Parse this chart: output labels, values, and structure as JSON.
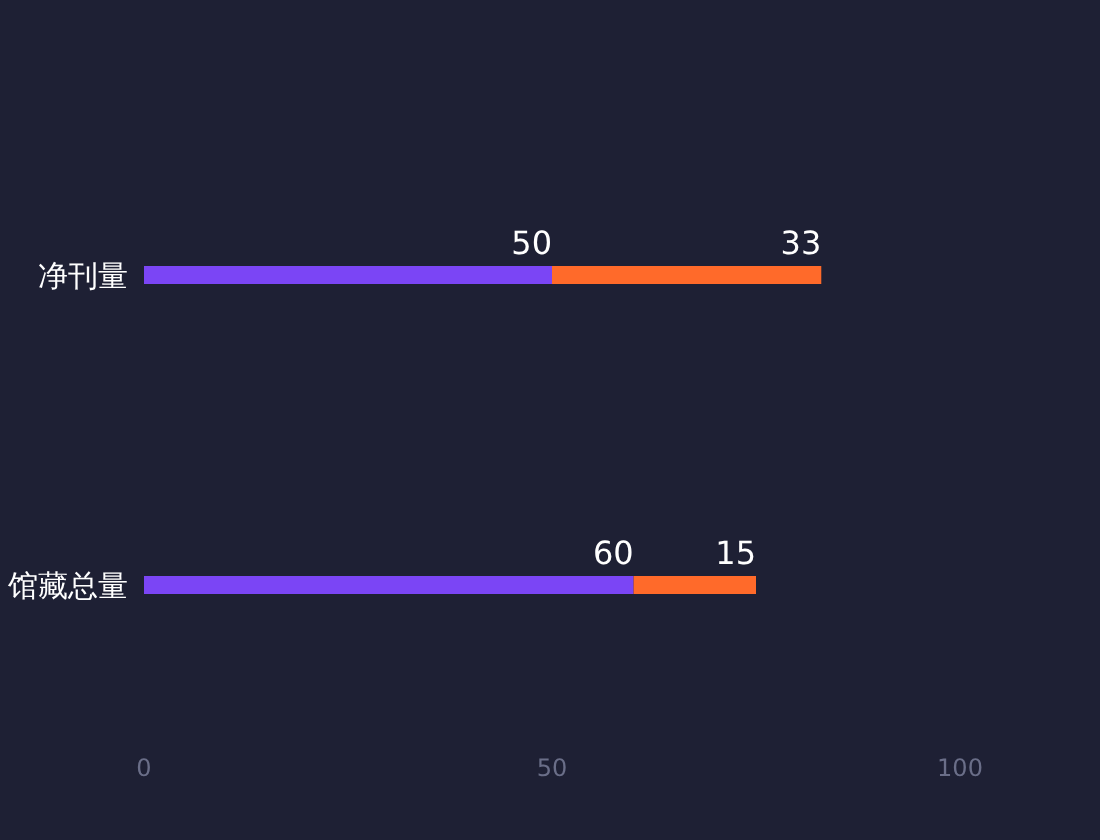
{
  "chart_data": {
    "type": "bar",
    "orientation": "horizontal",
    "stacked": true,
    "categories": [
      "净刊量",
      "馆藏总量"
    ],
    "series": [
      {
        "color": "#7b45f5",
        "values": [
          50,
          60
        ]
      },
      {
        "color": "#ff6a2a",
        "values": [
          33,
          15
        ]
      }
    ],
    "xlim": [
      0,
      100
    ],
    "xticks": [
      0,
      50,
      100
    ],
    "data_labels": true
  }
}
